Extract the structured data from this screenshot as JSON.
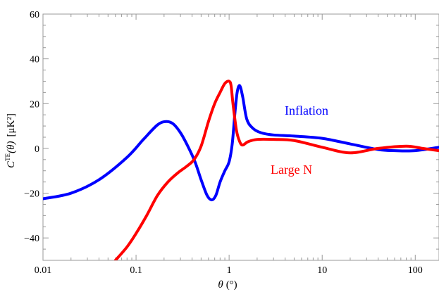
{
  "chart_data": {
    "type": "line",
    "x_scale": "log",
    "xlim": [
      0.01,
      180
    ],
    "ylim": [
      -50,
      60
    ],
    "x_ticks": [
      {
        "value": 0.01,
        "label": "0.01"
      },
      {
        "value": 0.1,
        "label": "0.1"
      },
      {
        "value": 1,
        "label": "1"
      },
      {
        "value": 10,
        "label": "10"
      },
      {
        "value": 100,
        "label": "100"
      }
    ],
    "y_ticks": [
      {
        "value": -40,
        "label": "−40"
      },
      {
        "value": -20,
        "label": "−20"
      },
      {
        "value": 0,
        "label": "0"
      },
      {
        "value": 20,
        "label": "20"
      },
      {
        "value": 40,
        "label": "40"
      },
      {
        "value": 60,
        "label": "60"
      }
    ],
    "xlabel": "θ",
    "xlabel_unit": "(°)",
    "ylabel_main": "C",
    "ylabel_sup": "TE",
    "ylabel_arg": "(θ)",
    "ylabel_unit": "[μK²]",
    "grid": false,
    "series": [
      {
        "name": "Inflation",
        "color": "#0000ff",
        "x": [
          0.01,
          0.02,
          0.04,
          0.08,
          0.12,
          0.17,
          0.21,
          0.25,
          0.3,
          0.36,
          0.43,
          0.5,
          0.58,
          0.65,
          0.72,
          0.8,
          0.9,
          1.0,
          1.08,
          1.15,
          1.22,
          1.3,
          1.4,
          1.55,
          1.8,
          2.2,
          3,
          5,
          10,
          20,
          40,
          60,
          100,
          180
        ],
        "y": [
          -22.5,
          -20,
          -14,
          -4,
          4,
          10.5,
          12,
          11,
          7,
          1,
          -6,
          -14,
          -21,
          -23,
          -21,
          -15,
          -10,
          -6,
          2,
          15,
          25,
          28,
          23,
          13,
          9,
          7,
          6,
          5.5,
          4.5,
          2,
          -0.5,
          -1,
          -1,
          0.5
        ]
      },
      {
        "name": "Large N",
        "color": "#ff0000",
        "x": [
          0.06,
          0.08,
          0.1,
          0.13,
          0.17,
          0.22,
          0.28,
          0.35,
          0.42,
          0.5,
          0.6,
          0.7,
          0.8,
          0.9,
          1.0,
          1.05,
          1.1,
          1.2,
          1.3,
          1.4,
          1.6,
          2,
          3,
          5,
          10,
          20,
          40,
          80,
          120,
          180
        ],
        "y": [
          -50,
          -44,
          -38,
          -30,
          -21,
          -15,
          -11,
          -8,
          -5,
          1,
          12,
          20,
          25,
          29,
          30,
          28,
          20,
          8,
          3,
          1.5,
          3,
          4,
          4,
          3.5,
          0.5,
          -2,
          0,
          1,
          0,
          -1
        ]
      }
    ],
    "annotations": [
      {
        "series": "Inflation",
        "text": "Inflation",
        "color": "#0000ff"
      },
      {
        "series": "Large N",
        "text": "Large N",
        "color": "#ff0000"
      }
    ]
  }
}
